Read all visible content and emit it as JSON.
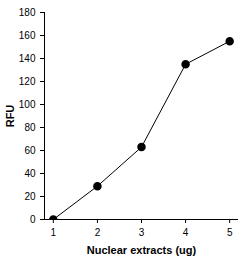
{
  "chart_data": {
    "type": "line",
    "x": [
      1,
      2,
      3,
      4,
      5
    ],
    "values": [
      0,
      29,
      63,
      135,
      155
    ],
    "xlabel": "Nuclear extracts (ug)",
    "ylabel": "RFU",
    "xlim": [
      0.8,
      5.2
    ],
    "xticks": [
      1,
      2,
      3,
      4,
      5
    ],
    "ylim": [
      0,
      180
    ],
    "yticks": [
      0,
      20,
      40,
      60,
      80,
      100,
      120,
      140,
      160,
      180
    ],
    "color": "#000000",
    "marker": "circle",
    "grid": false
  }
}
